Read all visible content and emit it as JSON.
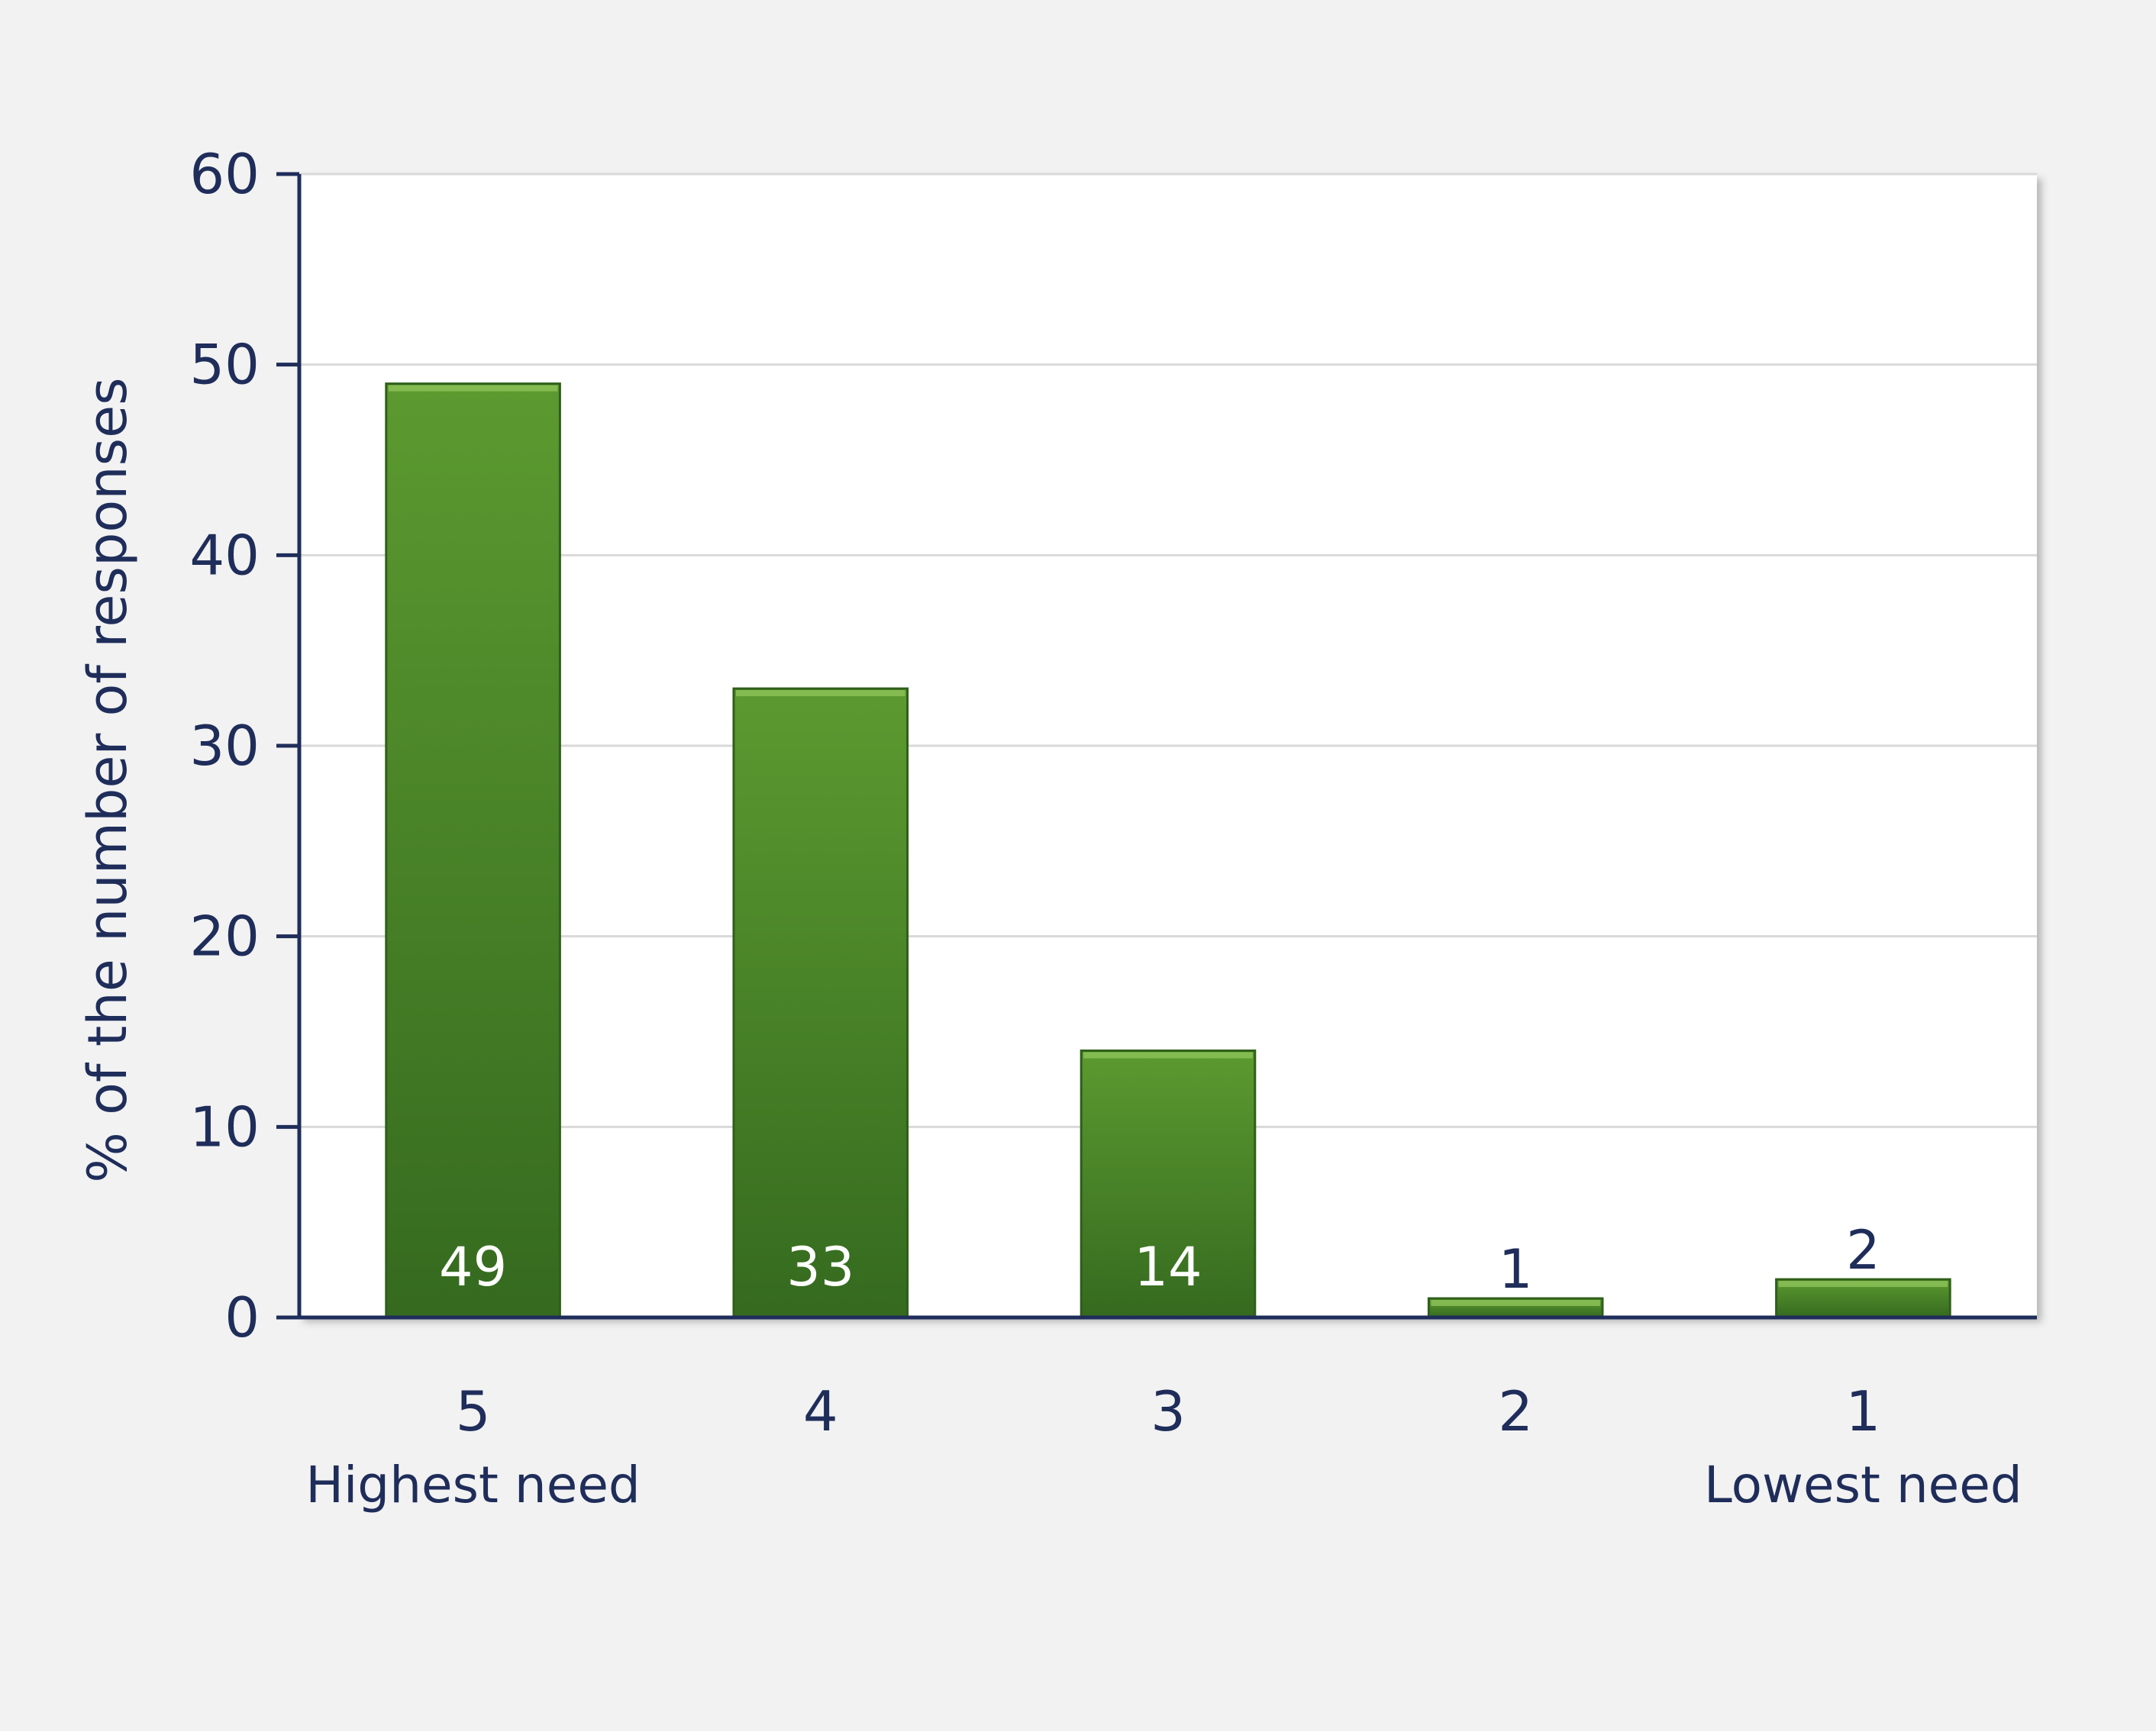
{
  "chart_data": {
    "type": "bar",
    "categories": [
      "5",
      "4",
      "3",
      "2",
      "1"
    ],
    "category_sublabels": [
      "Highest need",
      "",
      "",
      "",
      "Lowest need"
    ],
    "values": [
      49,
      33,
      14,
      1,
      2
    ],
    "data_labels": [
      "49",
      "33",
      "14",
      "1",
      "2"
    ],
    "ylabel": "% of the number of responses",
    "ylim": [
      0,
      60
    ],
    "yticks": [
      0,
      10,
      20,
      30,
      40,
      50,
      60
    ],
    "ytick_labels": [
      "0",
      "10",
      "20",
      "30",
      "40",
      "50",
      "60"
    ],
    "grid": true,
    "legend": "none"
  },
  "colors": {
    "page_background": "#f2f2f2",
    "plot_background": "#ffffff",
    "bar_top": "#5c9a30",
    "bar_bottom": "#356a1f",
    "bar_edge": "#2f5f1a",
    "axis": "#1f2d5a",
    "text": "#1f2d5a",
    "label_inside": "#ffffff",
    "gridline": "#d9d9d9"
  }
}
